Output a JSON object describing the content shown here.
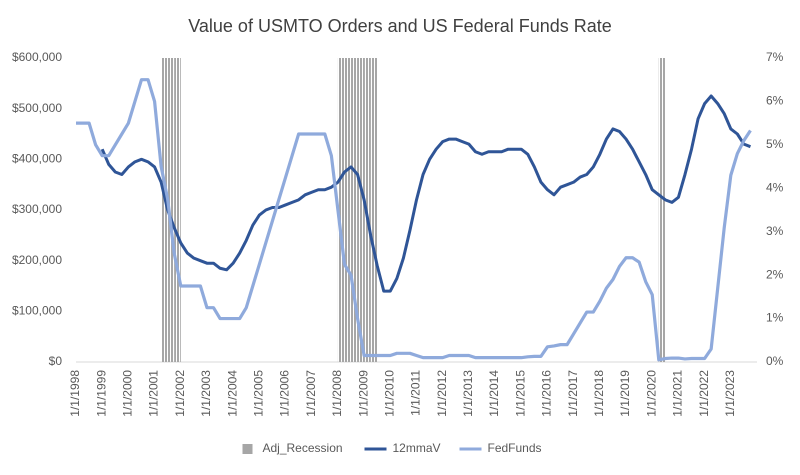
{
  "chart_data": {
    "type": "combo",
    "title": "Value of USMTO Orders and US Federal Funds Rate",
    "x": [
      "1/1/1998",
      "4/1/1998",
      "7/1/1998",
      "10/1/1998",
      "1/1/1999",
      "4/1/1999",
      "7/1/1999",
      "10/1/1999",
      "1/1/2000",
      "4/1/2000",
      "7/1/2000",
      "10/1/2000",
      "1/1/2001",
      "4/1/2001",
      "7/1/2001",
      "10/1/2001",
      "1/1/2002",
      "4/1/2002",
      "7/1/2002",
      "10/1/2002",
      "1/1/2003",
      "4/1/2003",
      "7/1/2003",
      "10/1/2003",
      "1/1/2004",
      "4/1/2004",
      "7/1/2004",
      "10/1/2004",
      "1/1/2005",
      "4/1/2005",
      "7/1/2005",
      "10/1/2005",
      "1/1/2006",
      "4/1/2006",
      "7/1/2006",
      "10/1/2006",
      "1/1/2007",
      "4/1/2007",
      "7/1/2007",
      "10/1/2007",
      "1/1/2008",
      "4/1/2008",
      "7/1/2008",
      "10/1/2008",
      "1/1/2009",
      "4/1/2009",
      "7/1/2009",
      "10/1/2009",
      "1/1/2010",
      "4/1/2010",
      "7/1/2010",
      "10/1/2010",
      "1/1/2011",
      "4/1/2011",
      "7/1/2011",
      "10/1/2011",
      "1/1/2012",
      "4/1/2012",
      "7/1/2012",
      "10/1/2012",
      "1/1/2013",
      "4/1/2013",
      "7/1/2013",
      "10/1/2013",
      "1/1/2014",
      "4/1/2014",
      "7/1/2014",
      "10/1/2014",
      "1/1/2015",
      "4/1/2015",
      "7/1/2015",
      "10/1/2015",
      "1/1/2016",
      "4/1/2016",
      "7/1/2016",
      "10/1/2016",
      "1/1/2017",
      "4/1/2017",
      "7/1/2017",
      "10/1/2017",
      "1/1/2018",
      "4/1/2018",
      "7/1/2018",
      "10/1/2018",
      "1/1/2019",
      "4/1/2019",
      "7/1/2019",
      "10/1/2019",
      "1/1/2020",
      "4/1/2020",
      "7/1/2020",
      "10/1/2020",
      "1/1/2021",
      "4/1/2021",
      "7/1/2021",
      "10/1/2021",
      "1/1/2022",
      "4/1/2022",
      "7/1/2022",
      "10/1/2022",
      "1/1/2023",
      "4/1/2023",
      "7/1/2023",
      "10/1/2023"
    ],
    "xlim": [
      "1/1/1998",
      "10/1/2023"
    ],
    "xticks": [
      "1/1/1998",
      "1/1/1999",
      "1/1/2000",
      "1/1/2001",
      "1/1/2002",
      "1/1/2003",
      "1/1/2004",
      "1/1/2005",
      "1/1/2006",
      "1/1/2007",
      "1/1/2008",
      "1/1/2009",
      "1/1/2010",
      "1/1/2011",
      "1/1/2012",
      "1/1/2013",
      "1/1/2014",
      "1/1/2015",
      "1/1/2016",
      "1/1/2017",
      "1/1/2018",
      "1/1/2019",
      "1/1/2020",
      "1/1/2021",
      "1/1/2022",
      "1/1/2023"
    ],
    "ylim": [
      0,
      600000
    ],
    "yticks": [
      {
        "value": 0,
        "label": "$0"
      },
      {
        "value": 100000,
        "label": "$100,000"
      },
      {
        "value": 200000,
        "label": "$200,000"
      },
      {
        "value": 300000,
        "label": "$300,000"
      },
      {
        "value": 400000,
        "label": "$400,000"
      },
      {
        "value": 500000,
        "label": "$500,000"
      },
      {
        "value": 600000,
        "label": "$600,000"
      }
    ],
    "y2lim": [
      0,
      7
    ],
    "y2ticks": [
      {
        "value": 0,
        "label": "0%"
      },
      {
        "value": 1,
        "label": "1%"
      },
      {
        "value": 2,
        "label": "2%"
      },
      {
        "value": 3,
        "label": "3%"
      },
      {
        "value": 4,
        "label": "4%"
      },
      {
        "value": 5,
        "label": "5%"
      },
      {
        "value": 6,
        "label": "6%"
      },
      {
        "value": 7,
        "label": "7%"
      }
    ],
    "legend": "bottom",
    "series": [
      {
        "name": "Adj_Recession",
        "type": "bar",
        "color": "#a6a6a6",
        "values": [
          0,
          0,
          0,
          0,
          0,
          0,
          0,
          0,
          0,
          0,
          0,
          0,
          0,
          600000,
          600000,
          600000,
          0,
          0,
          0,
          0,
          0,
          0,
          0,
          0,
          0,
          0,
          0,
          0,
          0,
          0,
          0,
          0,
          0,
          0,
          0,
          0,
          0,
          0,
          0,
          0,
          600000,
          600000,
          600000,
          600000,
          600000,
          600000,
          0,
          0,
          0,
          0,
          0,
          0,
          0,
          0,
          0,
          0,
          0,
          0,
          0,
          0,
          0,
          0,
          0,
          0,
          0,
          0,
          0,
          0,
          0,
          0,
          0,
          0,
          0,
          0,
          0,
          0,
          0,
          0,
          0,
          0,
          0,
          0,
          0,
          0,
          0,
          0,
          0,
          0,
          0,
          600000,
          0,
          0,
          0,
          0,
          0,
          0,
          0,
          0,
          0,
          0,
          0,
          0,
          0,
          0
        ]
      },
      {
        "name": "12mmaV",
        "type": "line",
        "color": "#2f5597",
        "values": [
          null,
          null,
          null,
          null,
          420000,
          390000,
          375000,
          370000,
          385000,
          395000,
          400000,
          395000,
          385000,
          355000,
          300000,
          265000,
          235000,
          215000,
          205000,
          200000,
          195000,
          195000,
          185000,
          182000,
          195000,
          215000,
          240000,
          270000,
          290000,
          300000,
          305000,
          305000,
          310000,
          315000,
          320000,
          330000,
          335000,
          340000,
          340000,
          345000,
          355000,
          375000,
          385000,
          370000,
          320000,
          250000,
          190000,
          140000,
          140000,
          165000,
          205000,
          260000,
          320000,
          370000,
          400000,
          420000,
          435000,
          440000,
          440000,
          435000,
          430000,
          415000,
          410000,
          415000,
          415000,
          415000,
          420000,
          420000,
          420000,
          410000,
          385000,
          355000,
          340000,
          330000,
          345000,
          350000,
          355000,
          365000,
          370000,
          385000,
          410000,
          440000,
          460000,
          455000,
          440000,
          420000,
          395000,
          370000,
          340000,
          330000,
          320000,
          315000,
          325000,
          370000,
          420000,
          480000,
          510000,
          525000,
          510000,
          490000,
          460000,
          450000,
          430000,
          425000
        ]
      },
      {
        "name": "FedFunds",
        "type": "line",
        "axis": "y2",
        "color": "#8faadc",
        "values": [
          5.5,
          5.5,
          5.5,
          5.0,
          4.75,
          4.75,
          5.0,
          5.25,
          5.5,
          6.0,
          6.5,
          6.5,
          6.0,
          4.5,
          3.75,
          2.5,
          1.75,
          1.75,
          1.75,
          1.75,
          1.25,
          1.25,
          1.0,
          1.0,
          1.0,
          1.0,
          1.25,
          1.75,
          2.25,
          2.75,
          3.25,
          3.75,
          4.25,
          4.75,
          5.25,
          5.25,
          5.25,
          5.25,
          5.25,
          4.75,
          3.5,
          2.25,
          2.0,
          1.0,
          0.15,
          0.15,
          0.15,
          0.15,
          0.15,
          0.2,
          0.2,
          0.2,
          0.15,
          0.1,
          0.1,
          0.1,
          0.1,
          0.15,
          0.15,
          0.15,
          0.15,
          0.1,
          0.1,
          0.1,
          0.1,
          0.1,
          0.1,
          0.1,
          0.1,
          0.12,
          0.13,
          0.13,
          0.35,
          0.37,
          0.4,
          0.4,
          0.65,
          0.9,
          1.15,
          1.15,
          1.4,
          1.7,
          1.9,
          2.2,
          2.4,
          2.4,
          2.3,
          1.85,
          1.55,
          0.05,
          0.08,
          0.09,
          0.09,
          0.07,
          0.08,
          0.08,
          0.08,
          0.3,
          1.7,
          3.1,
          4.3,
          4.8,
          5.1,
          5.33
        ]
      }
    ]
  }
}
